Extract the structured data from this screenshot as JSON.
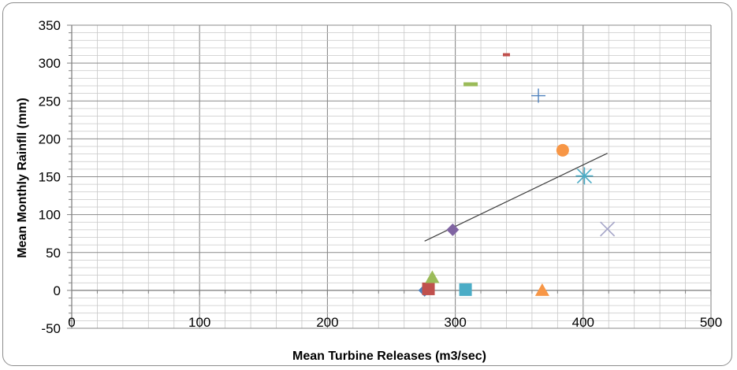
{
  "chart_data": {
    "type": "scatter",
    "title": "",
    "xlabel": "Mean Turbine Releases (m3/sec)",
    "ylabel": "Mean Monthly Rainfll (mm)",
    "xlim": [
      0,
      500
    ],
    "ylim": [
      -50,
      350
    ],
    "x_ticks": [
      0,
      100,
      200,
      300,
      400,
      500
    ],
    "y_ticks": [
      -50,
      0,
      50,
      100,
      150,
      200,
      250,
      300,
      350
    ],
    "grid": "major and minor, both axes",
    "legend": "none",
    "points": [
      {
        "x": 276,
        "y": 0,
        "marker": "diamond",
        "color": "#4F81BD"
      },
      {
        "x": 279,
        "y": 2,
        "marker": "square",
        "color": "#C0504D"
      },
      {
        "x": 282,
        "y": 17,
        "marker": "triangle",
        "color": "#9BBB59"
      },
      {
        "x": 298,
        "y": 80,
        "marker": "diamond",
        "color": "#8064A2"
      },
      {
        "x": 308,
        "y": 1,
        "marker": "square",
        "color": "#4BACC6"
      },
      {
        "x": 368,
        "y": 0,
        "marker": "triangle",
        "color": "#F79646"
      },
      {
        "x": 419,
        "y": 81,
        "marker": "x",
        "color": "#A5A5C8"
      },
      {
        "x": 401,
        "y": 151,
        "marker": "star",
        "color": "#4BACC6"
      },
      {
        "x": 384,
        "y": 185,
        "marker": "circle",
        "color": "#F79646"
      },
      {
        "x": 365,
        "y": 257,
        "marker": "plus",
        "color": "#4F81BD"
      },
      {
        "x": 340,
        "y": 311,
        "marker": "dash-small",
        "color": "#C0504D"
      },
      {
        "x": 312,
        "y": 272,
        "marker": "dash",
        "color": "#9BBB59"
      }
    ],
    "trendline": {
      "x": [
        276,
        419
      ],
      "y": [
        65,
        181
      ],
      "color": "#404040"
    }
  }
}
